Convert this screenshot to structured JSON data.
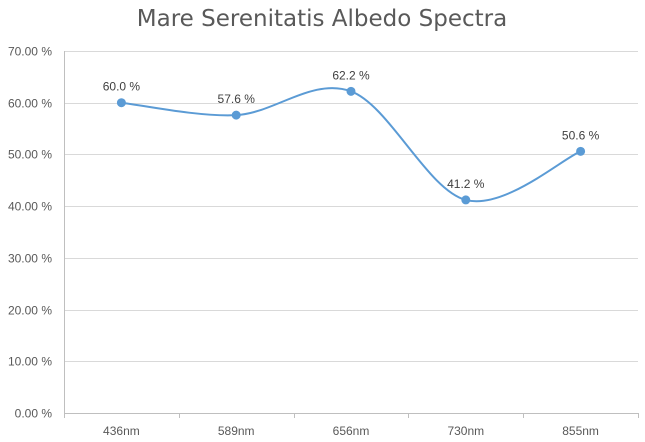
{
  "chart_data": {
    "type": "line",
    "title": "Mare Serenitatis Albedo Spectra",
    "xlabel": "",
    "ylabel": "",
    "categories": [
      "436nm",
      "589nm",
      "656nm",
      "730nm",
      "855nm"
    ],
    "series": [
      {
        "values": [
          60.0,
          57.6,
          62.2,
          41.2,
          50.6
        ],
        "data_labels": [
          "60.0 %",
          "57.6 %",
          "62.2 %",
          "41.2 %",
          "50.6 %"
        ],
        "color": "#5b9bd5",
        "smooth": true,
        "markers": true
      }
    ],
    "ylim": [
      0,
      70
    ],
    "yticks": [
      0,
      10,
      20,
      30,
      40,
      50,
      60,
      70
    ],
    "ytick_labels": [
      "0.00 %",
      "10.00 %",
      "20.00 %",
      "30.00 %",
      "40.00 %",
      "50.00 %",
      "60.00 %",
      "70.00 %"
    ],
    "grid": true,
    "legend": "none"
  }
}
